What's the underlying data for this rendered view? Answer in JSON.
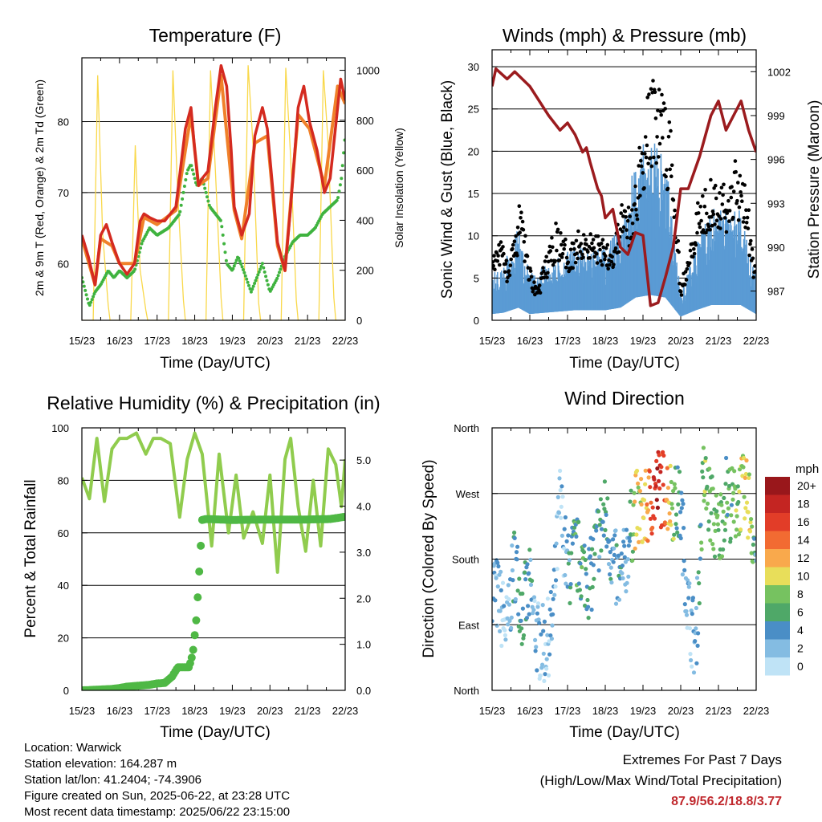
{
  "panels": {
    "temperature": {
      "title": "Temperature (F)",
      "xlabel": "Time (Day/UTC)",
      "ylabel_left": "2m & 9m T (Red, Orange) & 2m Td (Green)",
      "ylabel_right": "Solar Insolation (Yellow)"
    },
    "winds": {
      "title": "Winds (mph) & Pressure (mb)",
      "xlabel": "Time (Day/UTC)",
      "ylabel_left": "Sonic Wind & Gust (Blue, Black)",
      "ylabel_right": "Station Pressure (Maroon)"
    },
    "humidity": {
      "title": "Relative Humidity (%) & Precipitation (in)",
      "xlabel": "Time (Day/UTC)",
      "ylabel_left": "Percent & Total Rainfall"
    },
    "direction": {
      "title": "Wind Direction",
      "xlabel": "Time (Day/UTC)",
      "ylabel_left": "Direction (Colored By Speed)",
      "legend_title": "mph"
    }
  },
  "footer": {
    "location": "Location: Warwick",
    "elevation": "Station elevation: 164.287 m",
    "latlon": "Station lat/lon: 41.2404; -74.3906",
    "created": "Figure created on Sun, 2025-06-22, at 23:28 UTC",
    "latest": "Most recent data timestamp: 2025/06/22 23:15:00",
    "extremes_title": "Extremes For Past 7 Days",
    "extremes_subtitle": "(High/Low/Max Wind/Total Precipitation)",
    "extremes_values": "87.9/56.2/18.8/3.77"
  },
  "chart_data": [
    {
      "type": "line",
      "title": "Temperature (F)",
      "xlabel": "Time (Day/UTC)",
      "ylabel": "2m & 9m T (Red, Orange) & 2m Td (Green)",
      "y2label": "Solar Insolation (Yellow)",
      "x_ticks": [
        "15/23",
        "16/23",
        "17/23",
        "18/23",
        "19/23",
        "20/23",
        "21/23",
        "22/23"
      ],
      "xlim": [
        0,
        7
      ],
      "ylim": [
        52,
        89
      ],
      "y_ticks": [
        60,
        70,
        80
      ],
      "y2lim": [
        0,
        1050
      ],
      "y2_ticks": [
        0,
        200,
        400,
        600,
        800,
        1000
      ],
      "grid_y": true,
      "colors": {
        "temp2m": "#d42a20",
        "temp9m": "#f0812a",
        "dewpoint": "#3fb33f",
        "solar": "#f9d84a"
      },
      "series": [
        {
          "x": [
            0,
            0.17,
            0.35,
            0.5,
            0.65,
            0.8,
            1.0,
            1.2,
            1.4,
            1.55,
            1.65,
            1.8,
            2.0,
            2.2,
            2.5,
            2.75,
            2.9,
            3.0,
            3.1,
            3.2,
            3.35,
            3.55,
            3.7,
            3.85,
            3.97,
            4.05,
            4.25,
            4.45,
            4.6,
            4.8,
            4.93,
            5.05,
            5.2,
            5.4,
            5.55,
            5.75,
            5.9,
            6.05,
            6.25,
            6.45,
            6.6,
            6.8,
            6.88,
            7.0
          ],
          "y": [
            64,
            61,
            57,
            64,
            65.5,
            63,
            60,
            58.5,
            60,
            66,
            67,
            66.5,
            66,
            66,
            68,
            79,
            82,
            76,
            71,
            72,
            73,
            82,
            87.9,
            85,
            76,
            68,
            64,
            67,
            78,
            82,
            79,
            72,
            63,
            59,
            68,
            82,
            85,
            80,
            76,
            70,
            72,
            82,
            86,
            83
          ]
        },
        {
          "x": [
            0,
            0.35,
            0.5,
            0.8,
            1.0,
            1.4,
            1.65,
            2.0,
            2.5,
            2.9,
            3.1,
            3.35,
            3.7,
            4.05,
            4.25,
            4.6,
            4.93,
            5.2,
            5.4,
            5.75,
            6.05,
            6.45,
            6.8,
            7.0
          ],
          "y": [
            63.5,
            57,
            63.5,
            62.5,
            60,
            60,
            66.5,
            65.5,
            67.5,
            81,
            71,
            72,
            86.5,
            67.5,
            63.5,
            77,
            78,
            62.5,
            59,
            81,
            79,
            71,
            85,
            82.5
          ]
        },
        {
          "x": [
            0,
            0.1,
            0.2,
            0.35,
            0.5,
            0.7,
            0.85,
            1.0,
            1.2,
            1.4,
            1.6,
            1.8,
            2.0,
            2.3,
            2.6,
            2.8,
            2.9,
            3.05,
            3.2,
            3.4,
            3.55,
            3.7,
            3.85,
            4.0,
            4.15,
            4.3,
            4.5,
            4.65,
            4.8,
            5.0,
            5.2,
            5.4,
            5.6,
            5.8,
            6.0,
            6.2,
            6.4,
            6.6,
            6.8,
            6.9,
            7.0
          ],
          "y": [
            58,
            56,
            54,
            56,
            57,
            59,
            58,
            59,
            58,
            59,
            63,
            65,
            64,
            65,
            67,
            73,
            74,
            71,
            72,
            68,
            67,
            66,
            60,
            59,
            61,
            59,
            56,
            58,
            60,
            56,
            58,
            61,
            63,
            64,
            64,
            65,
            67,
            68,
            69,
            72,
            78
          ]
        },
        {
          "x": [
            0,
            0.3,
            0.42,
            0.55,
            0.7,
            0.75,
            1.3,
            1.42,
            1.55,
            1.7,
            1.75,
            2.3,
            2.42,
            2.55,
            2.7,
            2.75,
            3.3,
            3.42,
            3.55,
            3.7,
            3.75,
            4.3,
            4.42,
            4.55,
            4.7,
            4.75,
            5.3,
            5.42,
            5.55,
            5.7,
            5.75,
            6.3,
            6.42,
            6.55,
            6.7,
            6.75,
            7.0
          ],
          "y": [
            0,
            0,
            980,
            350,
            60,
            0,
            0,
            700,
            200,
            40,
            0,
            0,
            1000,
            500,
            80,
            0,
            0,
            1000,
            600,
            90,
            0,
            0,
            1020,
            700,
            70,
            0,
            0,
            1010,
            650,
            80,
            0,
            0,
            1000,
            700,
            90,
            0,
            0
          ]
        }
      ]
    },
    {
      "type": "scatter",
      "title": "Winds (mph) & Pressure (mb)",
      "xlabel": "Time (Day/UTC)",
      "ylabel": "Sonic Wind & Gust (Blue, Black)",
      "y2label": "Station Pressure (Maroon)",
      "x_ticks": [
        "15/23",
        "16/23",
        "17/23",
        "18/23",
        "19/23",
        "20/23",
        "21/23",
        "22/23"
      ],
      "xlim": [
        0,
        7
      ],
      "ylim": [
        0,
        32
      ],
      "y_ticks": [
        0,
        5,
        10,
        15,
        20,
        25,
        30
      ],
      "y2lim": [
        985.0,
        1003.5
      ],
      "y2_ticks": [
        987,
        990,
        993,
        996,
        999,
        1002
      ],
      "grid_y": true,
      "colors": {
        "wind": "#5a9bd4",
        "gust": "#000000",
        "pressure": "#9b1b1e"
      },
      "series": [
        {
          "x": [
            0,
            0.3,
            0.7,
            1.0,
            1.4,
            1.8,
            2.2,
            2.6,
            3.0,
            3.4,
            3.8,
            4.2,
            4.6,
            5.0,
            5.4,
            5.8,
            6.2,
            6.6,
            7.0
          ],
          "y": [
            2.5,
            3,
            5,
            2.5,
            3,
            3.5,
            4,
            4,
            4,
            5,
            9,
            10,
            9,
            1.5,
            4,
            6,
            6,
            6,
            2.5
          ]
        },
        {
          "x": [
            0,
            0.2,
            0.45,
            0.75,
            1.0,
            1.2,
            1.45,
            1.7,
            2.0,
            2.2,
            2.45,
            2.7,
            3.0,
            3.2,
            3.45,
            3.7,
            3.9,
            4.1,
            4.3,
            4.55,
            4.8,
            5.0,
            5.2,
            5.45,
            5.7,
            5.95,
            6.2,
            6.45,
            6.7,
            6.95
          ],
          "y": [
            6,
            8,
            5,
            11,
            5,
            3,
            6,
            9,
            7,
            8,
            9,
            8,
            8,
            7,
            11,
            10,
            16,
            20,
            23,
            21,
            16,
            3,
            7,
            11,
            13,
            14,
            12,
            15,
            14,
            5
          ]
        },
        {
          "x": [
            0,
            0.1,
            0.4,
            0.6,
            0.8,
            1.0,
            1.3,
            1.5,
            1.8,
            2.0,
            2.2,
            2.4,
            2.5,
            2.6,
            2.8,
            2.9,
            3.0,
            3.2,
            3.4,
            3.6,
            3.8,
            4.0,
            4.2,
            4.4,
            4.6,
            4.8,
            5.0,
            5.2,
            5.5,
            5.8,
            6.0,
            6.2,
            6.4,
            6.6,
            6.8,
            7.0
          ],
          "y": [
            1001.0,
            1002.2,
            1001.5,
            1002.0,
            1001.5,
            1001.0,
            999.8,
            999.0,
            998.0,
            998.5,
            997.7,
            996.5,
            996.8,
            995.8,
            994.0,
            993.5,
            992.0,
            992.6,
            990.0,
            989.5,
            991.0,
            990.8,
            986.0,
            986.2,
            988.0,
            990.0,
            994.0,
            994.0,
            996.2,
            999.0,
            1000.0,
            998.0,
            999.0,
            1000.0,
            998.0,
            996.5
          ]
        }
      ]
    },
    {
      "type": "line",
      "title": "Relative Humidity (%) & Precipitation (in)",
      "xlabel": "Time (Day/UTC)",
      "ylabel": "Percent & Total Rainfall",
      "x_ticks": [
        "15/23",
        "16/23",
        "17/23",
        "18/23",
        "19/23",
        "20/23",
        "21/23",
        "22/23"
      ],
      "xlim": [
        0,
        7
      ],
      "ylim": [
        0,
        100
      ],
      "y_ticks": [
        0,
        20,
        40,
        60,
        80,
        100
      ],
      "y2lim": [
        0,
        5.7
      ],
      "y2_ticks": [
        "0.0",
        "1.0",
        "2.0",
        "3.0",
        "4.0",
        "5.0"
      ],
      "grid_y": true,
      "colors": {
        "rh": "#90cc4e",
        "precip": "#4fb845"
      },
      "series": [
        {
          "x": [
            0,
            0.2,
            0.4,
            0.6,
            0.8,
            1.0,
            1.2,
            1.45,
            1.7,
            1.9,
            2.1,
            2.35,
            2.6,
            2.8,
            3.0,
            3.2,
            3.45,
            3.65,
            3.9,
            4.1,
            4.3,
            4.55,
            4.8,
            5.0,
            5.2,
            5.4,
            5.55,
            5.75,
            5.95,
            6.15,
            6.35,
            6.55,
            6.75,
            6.9,
            7.0
          ],
          "y": [
            81,
            73,
            96,
            72,
            92,
            96,
            96,
            98,
            90,
            96,
            96,
            94,
            66,
            88,
            98,
            90,
            55,
            90,
            60,
            82,
            58,
            68,
            56,
            82,
            45,
            88,
            96,
            70,
            53,
            80,
            55,
            92,
            86,
            70,
            88
          ]
        },
        {
          "x": [
            0,
            0.8,
            1.0,
            1.2,
            1.5,
            1.8,
            2.0,
            2.2,
            2.4,
            2.55,
            2.85,
            2.95,
            3.0,
            3.05,
            3.1,
            3.15,
            3.2,
            3.3,
            4.0,
            5.0,
            6.0,
            6.6,
            7.0
          ],
          "y": [
            0.0,
            0.03,
            0.05,
            0.08,
            0.1,
            0.12,
            0.15,
            0.16,
            0.3,
            0.5,
            0.5,
            0.8,
            1.2,
            1.6,
            2.3,
            3.0,
            3.7,
            3.72,
            3.7,
            3.71,
            3.71,
            3.72,
            3.77
          ]
        }
      ]
    },
    {
      "type": "scatter",
      "title": "Wind Direction",
      "xlabel": "Time (Day/UTC)",
      "ylabel": "Direction (Colored By Speed)",
      "x_ticks": [
        "15/23",
        "16/23",
        "17/23",
        "18/23",
        "19/23",
        "20/23",
        "21/23",
        "22/23"
      ],
      "xlim": [
        0,
        7
      ],
      "ylim": [
        0,
        360
      ],
      "y_ticks": [
        "North",
        "East",
        "South",
        "West",
        "North"
      ],
      "grid_y": true,
      "legend": {
        "title": "mph",
        "position": "right",
        "labels": [
          "20+",
          "18",
          "16",
          "14",
          "12",
          "10",
          "8",
          "6",
          "4",
          "2",
          "0"
        ],
        "colors": [
          "#99171b",
          "#c42522",
          "#e23d28",
          "#f26b32",
          "#f9a94c",
          "#e8de5a",
          "#76c260",
          "#4fa868",
          "#4a8ec6",
          "#84bce2",
          "#bfe3f6"
        ]
      },
      "series": [
        {
          "x": [
            0.0,
            0.2,
            0.4,
            0.6,
            0.8,
            1.0,
            1.2,
            1.4,
            1.6,
            1.8,
            2.0,
            2.2,
            2.4,
            2.6,
            2.8,
            3.0,
            3.2,
            3.4,
            3.6,
            3.8,
            4.0,
            4.2,
            4.4,
            4.6,
            4.8,
            5.0,
            5.2,
            5.4,
            5.6,
            5.8,
            6.0,
            6.2,
            6.4,
            6.6,
            6.8,
            7.0
          ],
          "y": [
            150,
            120,
            80,
            180,
            110,
            140,
            70,
            60,
            90,
            260,
            160,
            190,
            170,
            150,
            210,
            240,
            180,
            140,
            200,
            250,
            240,
            260,
            280,
            275,
            260,
            250,
            110,
            60,
            290,
            250,
            210,
            270,
            250,
            270,
            260,
            180
          ],
          "speed": [
            3,
            2,
            1,
            4,
            5,
            4,
            2,
            2,
            3,
            1,
            4,
            6,
            6,
            5,
            4,
            6,
            3,
            4,
            2,
            11,
            10,
            15,
            18,
            14,
            8,
            4,
            2,
            3,
            8,
            7,
            7,
            6,
            7,
            9,
            11,
            3
          ]
        }
      ]
    }
  ]
}
